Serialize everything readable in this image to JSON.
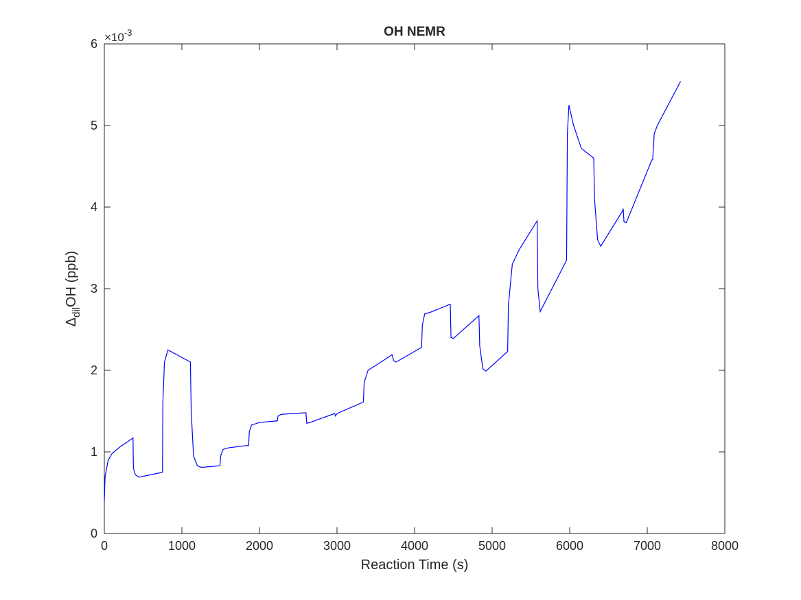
{
  "chart_data": {
    "type": "line",
    "title": "OH NEMR",
    "xlabel": "Reaction Time (s)",
    "ylabel_parts": [
      "Δ",
      "dil",
      "OH (ppb)"
    ],
    "y_multiplier": {
      "base": "×10",
      "exponent": "-3"
    },
    "color": "#0000ff",
    "xlim": [
      0,
      8000
    ],
    "xticks": [
      0,
      1000,
      2000,
      3000,
      4000,
      5000,
      6000,
      7000,
      8000
    ],
    "ylim": [
      0,
      6
    ],
    "yticks": [
      0,
      1,
      2,
      3,
      4,
      5,
      6
    ],
    "grid": false,
    "x": [
      0,
      10,
      50,
      100,
      200,
      370,
      375,
      400,
      450,
      750,
      755,
      775,
      820,
      1110,
      1120,
      1150,
      1200,
      1250,
      1490,
      1500,
      1530,
      1600,
      1860,
      1870,
      1900,
      2000,
      2230,
      2240,
      2280,
      2600,
      2610,
      2650,
      2970,
      2980,
      3000,
      3340,
      3350,
      3400,
      3500,
      3710,
      3730,
      3760,
      4090,
      4100,
      4130,
      4200,
      4460,
      4470,
      4500,
      4830,
      4840,
      4880,
      4920,
      5200,
      5210,
      5260,
      5350,
      5580,
      5590,
      5620,
      5950,
      5960,
      5970,
      5990,
      6050,
      6150,
      6310,
      6320,
      6360,
      6400,
      6680,
      6690,
      6700,
      6730,
      7060,
      7070,
      7090,
      7130,
      7430
    ],
    "values": [
      0.4,
      0.7,
      0.9,
      0.98,
      1.06,
      1.17,
      0.8,
      0.72,
      0.69,
      0.75,
      1.6,
      2.1,
      2.25,
      2.1,
      1.5,
      0.95,
      0.83,
      0.81,
      0.83,
      0.95,
      1.03,
      1.05,
      1.08,
      1.25,
      1.33,
      1.36,
      1.38,
      1.44,
      1.46,
      1.48,
      1.35,
      1.36,
      1.47,
      1.44,
      1.47,
      1.61,
      1.85,
      2.0,
      2.06,
      2.19,
      2.12,
      2.1,
      2.28,
      2.55,
      2.69,
      2.71,
      2.81,
      2.4,
      2.39,
      2.67,
      2.3,
      2.02,
      1.99,
      2.23,
      2.8,
      3.3,
      3.48,
      3.83,
      3.0,
      2.72,
      3.33,
      3.35,
      4.9,
      5.25,
      5.0,
      4.72,
      4.6,
      4.1,
      3.6,
      3.52,
      3.95,
      3.98,
      3.82,
      3.81,
      4.58,
      4.58,
      4.9,
      5.0,
      5.54
    ]
  }
}
